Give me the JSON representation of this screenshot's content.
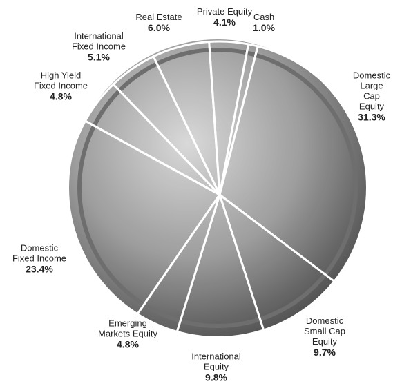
{
  "chart_data": {
    "type": "pie",
    "categories": [
      "Domestic\nLarge Cap\nEquity",
      "Domestic\nSmall Cap\nEquity",
      "International\nEquity",
      "Emerging\nMarkets Equity",
      "Domestic\nFixed Income",
      "High Yield\nFixed Income",
      "International\nFixed Income",
      "Real Estate",
      "Private Equity",
      "Cash"
    ],
    "values": [
      31.3,
      9.7,
      9.8,
      4.8,
      23.4,
      4.8,
      5.1,
      6.0,
      4.1,
      1.0
    ],
    "value_labels": [
      "31.3%",
      "9.7%",
      "9.8%",
      "4.8%",
      "23.4%",
      "4.8%",
      "5.1%",
      "6.0%",
      "4.1%",
      "1.0%"
    ]
  }
}
